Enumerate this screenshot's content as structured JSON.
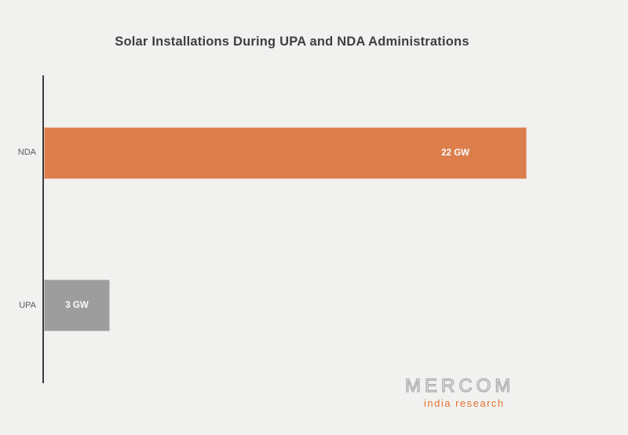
{
  "title": "Solar Installations During UPA and NDA Administrations",
  "chart_data": {
    "type": "bar",
    "orientation": "horizontal",
    "categories": [
      "NDA",
      "UPA"
    ],
    "values": [
      22,
      3
    ],
    "unit": "GW",
    "value_labels": [
      "22 GW",
      "3 GW"
    ],
    "bar_colors": [
      "#DC7E4C",
      "#9D9D9D"
    ],
    "xlim": [
      0,
      22
    ],
    "grid": false,
    "legend": false,
    "value_label_color": "#FCFCFC",
    "axis_color": "#3D3D3D",
    "background_color": "#F1F1F0",
    "title_color": "#404040",
    "category_label_color": "#595959"
  },
  "logo": {
    "brand": "MERCOM",
    "tagline": "india research",
    "brand_color": "#A4A4A4",
    "tagline_color": "#E7722D"
  }
}
